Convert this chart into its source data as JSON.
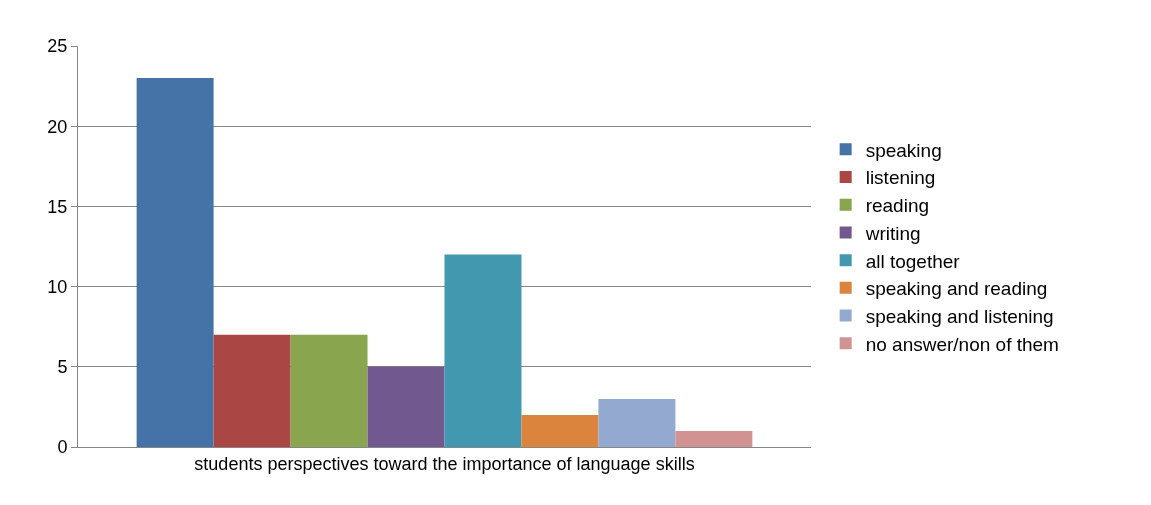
{
  "chart_data": {
    "type": "bar",
    "categories": [
      "students perspectives toward the importance of language skills"
    ],
    "series": [
      {
        "name": "speaking",
        "color": "#4572a7",
        "values": [
          23
        ]
      },
      {
        "name": "listening",
        "color": "#aa4643",
        "values": [
          7
        ]
      },
      {
        "name": "reading",
        "color": "#89a54e",
        "values": [
          7
        ]
      },
      {
        "name": "writing",
        "color": "#71588f",
        "values": [
          5
        ]
      },
      {
        "name": "all together",
        "color": "#4198af",
        "values": [
          12
        ]
      },
      {
        "name": "speaking and reading",
        "color": "#db843d",
        "values": [
          2
        ]
      },
      {
        "name": "speaking and listening",
        "color": "#93a9cf",
        "values": [
          3
        ]
      },
      {
        "name": "no answer/non of them",
        "color": "#d19392",
        "values": [
          1
        ]
      }
    ],
    "ylim": [
      0,
      25
    ],
    "yticks": [
      0,
      5,
      10,
      15,
      20,
      25
    ],
    "grid": "y",
    "legend": "right"
  }
}
